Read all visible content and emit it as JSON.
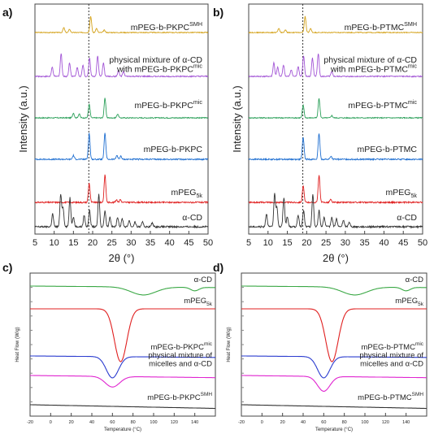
{
  "figure": {
    "panels": [
      {
        "letter": "a)",
        "type": "xrd",
        "ylabel": "Intensity (a.u.)",
        "xlabel": "2θ (°)",
        "xlim": [
          5,
          50
        ],
        "xticks": [
          5,
          10,
          15,
          20,
          25,
          30,
          35,
          40,
          45,
          50
        ],
        "marker_x": 19,
        "traces": [
          {
            "label": "mPEG-b-PKPC",
            "sup": "SMH",
            "sub": "",
            "color": "#d4a21a",
            "peaks": [
              [
                12.5,
                0.3
              ],
              [
                14,
                0.2
              ],
              [
                19.5,
                1.0
              ],
              [
                21,
                0.25
              ],
              [
                23,
                0.15
              ]
            ]
          },
          {
            "label_lines": [
              "physical mixture of α-CD",
              "with mPEG-b-PKPC"
            ],
            "sup": "mic",
            "sub": "",
            "color": "#a356d6",
            "peaks": [
              [
                9.5,
                0.4
              ],
              [
                11.8,
                1.0
              ],
              [
                14,
                0.6
              ],
              [
                16,
                0.4
              ],
              [
                17.5,
                0.5
              ],
              [
                19.2,
                0.8
              ],
              [
                21.3,
                0.9
              ],
              [
                22.8,
                0.6
              ],
              [
                26.7,
                0.25
              ],
              [
                28,
                0.2
              ]
            ]
          },
          {
            "label": "mPEG-b-PKPC",
            "sup": "mic",
            "sub": "",
            "color": "#2ca05a",
            "peaks": [
              [
                15,
                0.25
              ],
              [
                16.5,
                0.2
              ],
              [
                19.1,
                0.7
              ],
              [
                23.2,
                1.0
              ],
              [
                26.5,
                0.2
              ]
            ]
          },
          {
            "label": "mPEG-b-PKPC",
            "sup": "",
            "sub": "",
            "color": "#1f6fd1",
            "peaks": [
              [
                15,
                0.15
              ],
              [
                19.1,
                1.0
              ],
              [
                23.2,
                1.0
              ],
              [
                26.3,
                0.15
              ],
              [
                27.3,
                0.12
              ]
            ]
          },
          {
            "label": "mPEG",
            "sup": "",
            "sub": "5k",
            "color": "#e02020",
            "peaks": [
              [
                19.1,
                0.7
              ],
              [
                23.2,
                1.0
              ],
              [
                26.2,
                0.1
              ],
              [
                27.2,
                0.1
              ]
            ]
          },
          {
            "label": "α-CD",
            "sup": "",
            "sub": "",
            "color": "#333333",
            "peaks": [
              [
                9.6,
                0.4
              ],
              [
                11.7,
                1.0
              ],
              [
                12.3,
                0.6
              ],
              [
                14.1,
                0.9
              ],
              [
                15,
                0.3
              ],
              [
                17.8,
                0.35
              ],
              [
                19.2,
                0.5
              ],
              [
                21.6,
                1.0
              ],
              [
                23.2,
                0.5
              ],
              [
                24.5,
                0.3
              ],
              [
                26.5,
                0.3
              ],
              [
                27.7,
                0.25
              ],
              [
                29.5,
                0.2
              ],
              [
                31,
                0.15
              ],
              [
                33,
                0.15
              ],
              [
                35.5,
                0.12
              ]
            ]
          }
        ]
      },
      {
        "letter": "b)",
        "type": "xrd",
        "ylabel": "Intensity (a.u.)",
        "xlabel": "2θ (°)",
        "xlim": [
          5,
          50
        ],
        "xticks": [
          5,
          10,
          15,
          20,
          25,
          30,
          35,
          40,
          45,
          50
        ],
        "marker_x": 19,
        "traces": [
          {
            "label": "mPEG-b-PTMC",
            "sup": "SMH",
            "sub": "",
            "color": "#d4a21a",
            "peaks": [
              [
                12.8,
                0.25
              ],
              [
                14.5,
                0.15
              ],
              [
                19.6,
                1.0
              ],
              [
                21,
                0.25
              ]
            ]
          },
          {
            "label_lines": [
              "physical mixture of α-CD",
              "with mPEG-b-PTMC"
            ],
            "sup": "mic",
            "sub": "",
            "color": "#a356d6",
            "peaks": [
              [
                11.5,
                0.6
              ],
              [
                12.5,
                0.4
              ],
              [
                14,
                0.5
              ],
              [
                16,
                0.3
              ],
              [
                17.8,
                0.45
              ],
              [
                19.2,
                0.9
              ],
              [
                21.5,
                0.8
              ],
              [
                23,
                1.0
              ],
              [
                26.5,
                0.2
              ]
            ]
          },
          {
            "label": "mPEG-b-PTMC",
            "sup": "mic",
            "sub": "",
            "color": "#2ca05a",
            "peaks": [
              [
                19.1,
                0.65
              ],
              [
                23.2,
                1.0
              ],
              [
                26.5,
                0.12
              ]
            ]
          },
          {
            "label": "mPEG-b-PTMC",
            "sup": "",
            "sub": "",
            "color": "#1f6fd1",
            "peaks": [
              [
                19.1,
                0.85
              ],
              [
                23.2,
                1.0
              ],
              [
                26.3,
                0.12
              ]
            ]
          },
          {
            "label": "mPEG",
            "sup": "",
            "sub": "5k",
            "color": "#e02020",
            "peaks": [
              [
                19.1,
                0.6
              ],
              [
                23.2,
                1.0
              ],
              [
                26.2,
                0.1
              ]
            ]
          },
          {
            "label": "α-CD",
            "sup": "",
            "sub": "",
            "color": "#333333",
            "peaks": [
              [
                9.6,
                0.4
              ],
              [
                11.7,
                1.0
              ],
              [
                12.3,
                0.6
              ],
              [
                14.1,
                0.9
              ],
              [
                15,
                0.3
              ],
              [
                17.8,
                0.35
              ],
              [
                19.2,
                0.5
              ],
              [
                21.6,
                1.0
              ],
              [
                23.2,
                0.5
              ],
              [
                24.5,
                0.3
              ],
              [
                26.5,
                0.3
              ],
              [
                27.7,
                0.25
              ],
              [
                29.5,
                0.2
              ],
              [
                31,
                0.15
              ]
            ]
          }
        ]
      },
      {
        "letter": "c)",
        "type": "dsc",
        "ylabel": "Heat Flow (W/g)",
        "xlabel": "Temperature (°C)",
        "xlim": [
          -20,
          160
        ],
        "xticks": [
          -20,
          0,
          20,
          40,
          60,
          80,
          100,
          120,
          140
        ],
        "traces": [
          {
            "label": "α-CD",
            "sup": "",
            "sub": "",
            "color": "#3aa845",
            "dips": [
              [
                90,
                12,
                0.35
              ],
              [
                140,
                4,
                0.15
              ]
            ]
          },
          {
            "label": "mPEG",
            "sup": "",
            "sub": "5k",
            "color": "#e02020",
            "dips": [
              [
                68,
                6,
                1.0
              ]
            ]
          },
          {
            "label": "mPEG-b-PKPC",
            "sup": "mic",
            "sub": "",
            "color": "#2b3ccf",
            "dips": [
              [
                60,
                6,
                0.9
              ]
            ]
          },
          {
            "label_lines": [
              "physical mixture of",
              "micelles and α-CD"
            ],
            "sup": "",
            "sub": "",
            "color": "#e026d0",
            "dips": [
              [
                60,
                7,
                0.5
              ]
            ]
          },
          {
            "label": "mPEG-b-PKPC",
            "sup": "SMH",
            "sub": "",
            "color": "#333333",
            "dips": []
          }
        ]
      },
      {
        "letter": "d)",
        "type": "dsc",
        "ylabel": "Heat Flow (W/g)",
        "xlabel": "Temperature (°C)",
        "xlim": [
          -20,
          160
        ],
        "xticks": [
          -20,
          0,
          20,
          40,
          60,
          80,
          100,
          120,
          140
        ],
        "traces": [
          {
            "label": "α-CD",
            "sup": "",
            "sub": "",
            "color": "#3aa845",
            "dips": [
              [
                90,
                12,
                0.35
              ],
              [
                140,
                4,
                0.15
              ]
            ]
          },
          {
            "label": "mPEG",
            "sup": "",
            "sub": "5k",
            "color": "#e02020",
            "dips": [
              [
                68,
                6,
                1.0
              ]
            ]
          },
          {
            "label": "mPEG-b-PTMC",
            "sup": "mic",
            "sub": "",
            "color": "#2b3ccf",
            "dips": [
              [
                60,
                6,
                0.9
              ]
            ]
          },
          {
            "label_lines": [
              "physical mixture of",
              "micelles and α-CD"
            ],
            "sup": "",
            "sub": "",
            "color": "#e026d0",
            "dips": [
              [
                60,
                6,
                0.7
              ]
            ]
          },
          {
            "label": "mPEG-b-PTMC",
            "sup": "SMH",
            "sub": "",
            "color": "#333333",
            "dips": []
          }
        ]
      }
    ]
  },
  "chart_data": [
    {
      "type": "line",
      "panel": "a)",
      "xlabel": "2θ (°)",
      "ylabel": "Intensity (a.u.)",
      "xlim": [
        5,
        50
      ],
      "series": [
        {
          "name": "mPEG-b-PKPC SMH",
          "peak_positions_2theta": [
            12.5,
            14,
            19.5,
            21,
            23
          ]
        },
        {
          "name": "physical mixture of α-CD with mPEG-b-PKPC mic",
          "peak_positions_2theta": [
            9.5,
            11.8,
            14,
            16,
            17.5,
            19.2,
            21.3,
            22.8,
            26.7,
            28
          ]
        },
        {
          "name": "mPEG-b-PKPC mic",
          "peak_positions_2theta": [
            15,
            16.5,
            19.1,
            23.2,
            26.5
          ]
        },
        {
          "name": "mPEG-b-PKPC",
          "peak_positions_2theta": [
            15,
            19.1,
            23.2,
            26.3,
            27.3
          ]
        },
        {
          "name": "mPEG 5k",
          "peak_positions_2theta": [
            19.1,
            23.2,
            26.2,
            27.2
          ]
        },
        {
          "name": "α-CD",
          "peak_positions_2theta": [
            9.6,
            11.7,
            12.3,
            14.1,
            15,
            17.8,
            19.2,
            21.6,
            23.2,
            24.5,
            26.5,
            27.7,
            29.5,
            31,
            33,
            35.5
          ]
        }
      ],
      "reference_line_2theta": 19
    },
    {
      "type": "line",
      "panel": "b)",
      "xlabel": "2θ (°)",
      "ylabel": "Intensity (a.u.)",
      "xlim": [
        5,
        50
      ],
      "series": [
        {
          "name": "mPEG-b-PTMC SMH",
          "peak_positions_2theta": [
            12.8,
            14.5,
            19.6,
            21
          ]
        },
        {
          "name": "physical mixture of α-CD with mPEG-b-PTMC mic",
          "peak_positions_2theta": [
            11.5,
            12.5,
            14,
            16,
            17.8,
            19.2,
            21.5,
            23,
            26.5
          ]
        },
        {
          "name": "mPEG-b-PTMC mic",
          "peak_positions_2theta": [
            19.1,
            23.2,
            26.5
          ]
        },
        {
          "name": "mPEG-b-PTMC",
          "peak_positions_2theta": [
            19.1,
            23.2,
            26.3
          ]
        },
        {
          "name": "mPEG 5k",
          "peak_positions_2theta": [
            19.1,
            23.2,
            26.2
          ]
        },
        {
          "name": "α-CD",
          "peak_positions_2theta": [
            9.6,
            11.7,
            12.3,
            14.1,
            15,
            17.8,
            19.2,
            21.6,
            23.2,
            24.5,
            26.5,
            27.7,
            29.5,
            31
          ]
        }
      ],
      "reference_line_2theta": 19
    },
    {
      "type": "line",
      "panel": "c)",
      "xlabel": "Temperature (°C)",
      "ylabel": "Heat Flow (W/g)",
      "xlim": [
        -20,
        160
      ],
      "series": [
        {
          "name": "α-CD",
          "endotherm_minima_C": [
            90,
            140
          ]
        },
        {
          "name": "mPEG 5k",
          "endotherm_minima_C": [
            68
          ]
        },
        {
          "name": "mPEG-b-PKPC mic",
          "endotherm_minima_C": [
            60
          ]
        },
        {
          "name": "physical mixture of micelles and α-CD",
          "endotherm_minima_C": [
            60
          ]
        },
        {
          "name": "mPEG-b-PKPC SMH",
          "endotherm_minima_C": []
        }
      ]
    },
    {
      "type": "line",
      "panel": "d)",
      "xlabel": "Temperature (°C)",
      "ylabel": "Heat Flow (W/g)",
      "xlim": [
        -20,
        160
      ],
      "series": [
        {
          "name": "α-CD",
          "endotherm_minima_C": [
            90,
            140
          ]
        },
        {
          "name": "mPEG 5k",
          "endotherm_minima_C": [
            68
          ]
        },
        {
          "name": "mPEG-b-PTMC mic",
          "endotherm_minima_C": [
            60
          ]
        },
        {
          "name": "physical mixture of micelles and α-CD",
          "endotherm_minima_C": [
            60
          ]
        },
        {
          "name": "mPEG-b-PTMC SMH",
          "endotherm_minima_C": []
        }
      ]
    }
  ]
}
